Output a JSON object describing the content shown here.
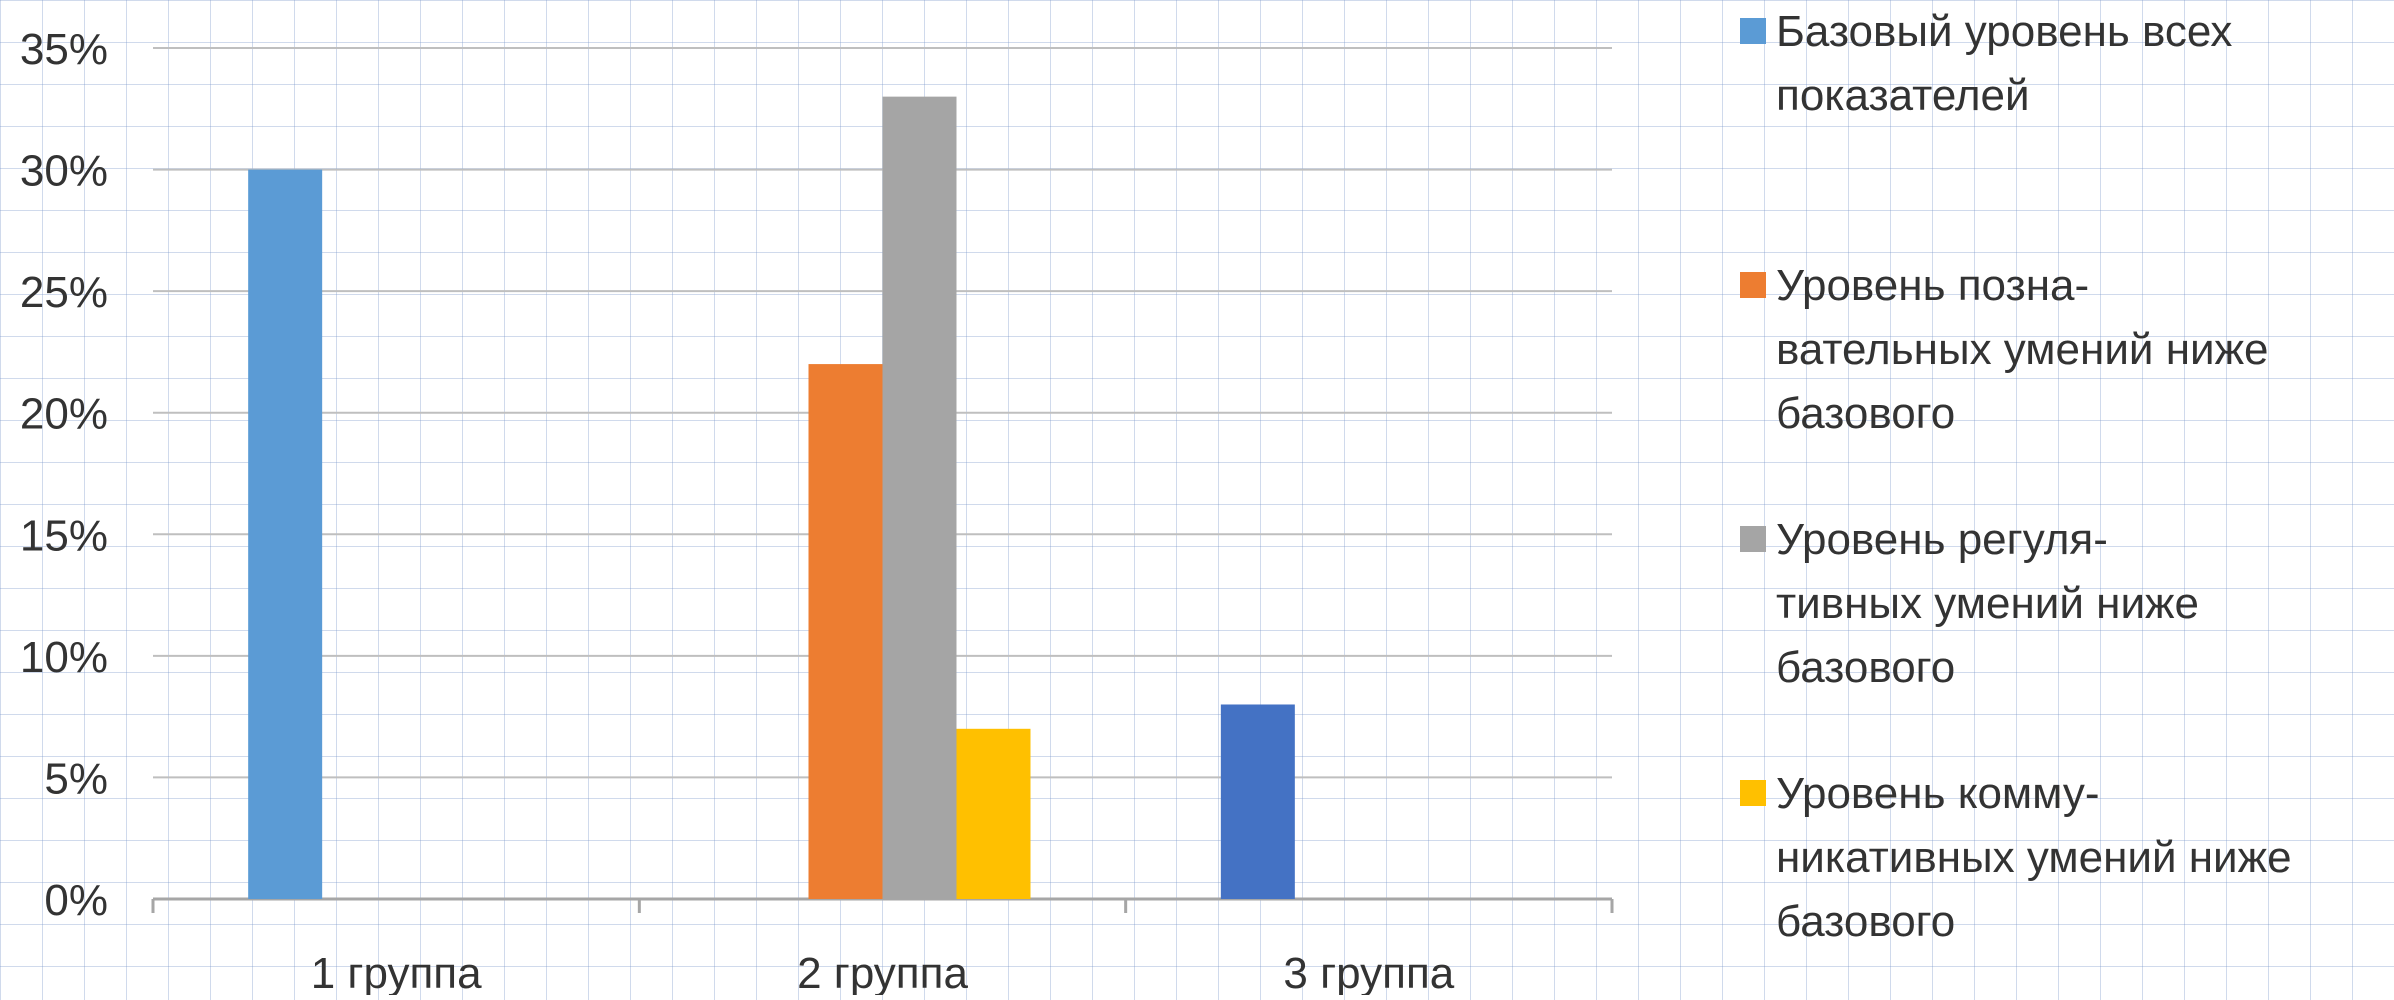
{
  "chart_data": {
    "type": "bar",
    "categories": [
      "1 группа",
      "2 группа",
      "3 группа"
    ],
    "series": [
      {
        "name": "Базовый уровень всех показателей",
        "values": [
          30,
          null,
          8
        ]
      },
      {
        "name": "Уровень позна-вательных умений ниже базового",
        "values": [
          null,
          22,
          null
        ]
      },
      {
        "name": "Уровень регуля-тивных умений ниже базового",
        "values": [
          null,
          33,
          null
        ]
      },
      {
        "name": "Уровень комму-никативных умений ниже базового",
        "values": [
          null,
          7,
          null
        ]
      }
    ],
    "series_colors": [
      "#5b9bd5",
      "#ed7d31",
      "#a5a5a5",
      "#ffc000"
    ],
    "point_colors": {
      "0-2": "#4472c4"
    },
    "yticks": [
      "0%",
      "5%",
      "10%",
      "15%",
      "20%",
      "25%",
      "30%",
      "35%"
    ],
    "ylim": [
      0,
      35
    ],
    "grid": true,
    "legend_position": "right",
    "title": "",
    "xlabel": "",
    "ylabel": ""
  },
  "legend": {
    "items": [
      {
        "label": "Базовый уровень всех\nпоказателей",
        "color": "#5b9bd5"
      },
      {
        "label": "Уровень позна-\nвательных умений ниже\nбазового",
        "color": "#ed7d31"
      },
      {
        "label": "Уровень регуля-\nтивных умений ниже\nбазового",
        "color": "#a5a5a5"
      },
      {
        "label": "Уровень комму-\nникативных умений ниже\nбазового",
        "color": "#ffc000"
      }
    ]
  }
}
